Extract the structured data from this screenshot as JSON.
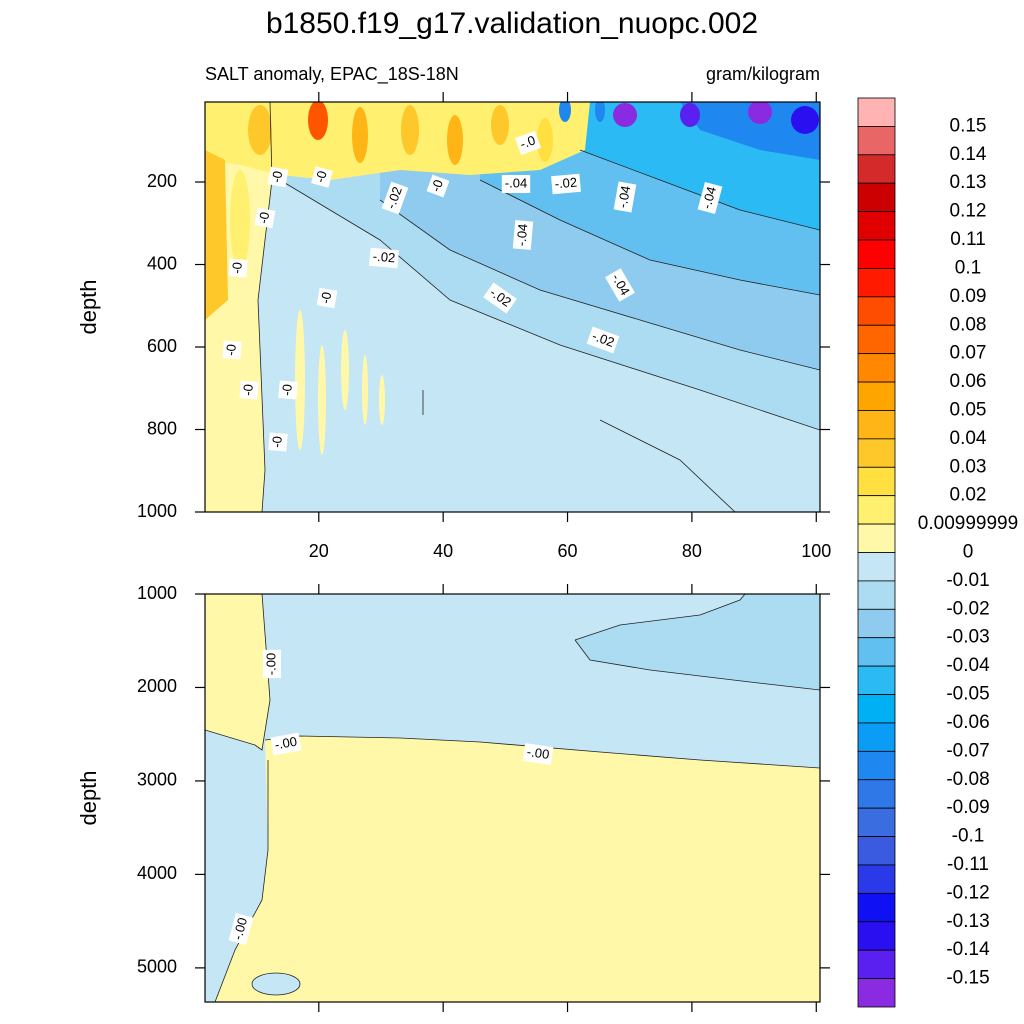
{
  "title": "b1850.f19_g17.validation_nuopc.002",
  "chart_data": [
    {
      "type": "contour",
      "subtitle_left": "SALT anomaly, EPAC_18S-18N",
      "subtitle_right": "gram/kilogram",
      "y_label": "depth",
      "y_inverted": true,
      "xlim": [
        1.7,
        100.6
      ],
      "xticks": [
        20,
        40,
        60,
        80,
        100
      ],
      "x_tick_labels": true,
      "ylim": [
        6,
        1000
      ],
      "yticks": [
        200,
        400,
        600,
        800,
        1000
      ],
      "contour_labels": [
        "-.0",
        "-0",
        "-0",
        "-.02",
        "-0",
        "-.04",
        "-.02",
        "-.04",
        "-.04",
        "-0",
        "-.04",
        "-.02",
        "-0",
        "-.04",
        "-.02",
        "-0",
        "-.02",
        "-0",
        "-0",
        "-0",
        "-0"
      ]
    },
    {
      "type": "contour",
      "y_label": "depth",
      "y_inverted": true,
      "xlim": [
        1.7,
        100.6
      ],
      "xticks": [
        20,
        40,
        60,
        80,
        100
      ],
      "x_tick_labels": false,
      "ylim": [
        1000,
        5365
      ],
      "yticks": [
        1000,
        2000,
        3000,
        4000,
        5000
      ],
      "contour_labels": [
        "-.00",
        "-.00",
        "-.00",
        "-.00"
      ]
    }
  ],
  "colorbar": {
    "levels": [
      0.15,
      0.14,
      0.13,
      0.12,
      0.11,
      0.1,
      0.09,
      0.08,
      0.07,
      0.06,
      0.05,
      0.04,
      0.03,
      0.02,
      0.00999999,
      0,
      -0.01,
      -0.02,
      -0.03,
      -0.04,
      -0.05,
      -0.06,
      -0.07,
      -0.08,
      -0.09,
      -0.1,
      -0.11,
      -0.12,
      -0.13,
      -0.14,
      -0.15
    ],
    "colors": [
      "#ffb3b3",
      "#e86666",
      "#d42a2a",
      "#cc0000",
      "#e00000",
      "#ff0000",
      "#ff1a00",
      "#ff4d00",
      "#ff6600",
      "#ff8800",
      "#ffa500",
      "#ffb515",
      "#ffc82a",
      "#ffe040",
      "#fff070",
      "#fff8a8",
      "#c5e6f5",
      "#acdcf2",
      "#8ecbee",
      "#62c0f0",
      "#2cbaf5",
      "#00b0f5",
      "#0b9cf5",
      "#1e88f0",
      "#2e78e8",
      "#3a6ee0",
      "#3a5ae0",
      "#2a3ae8",
      "#1010f5",
      "#2a10f0",
      "#5a20f0",
      "#8a2be2"
    ]
  }
}
